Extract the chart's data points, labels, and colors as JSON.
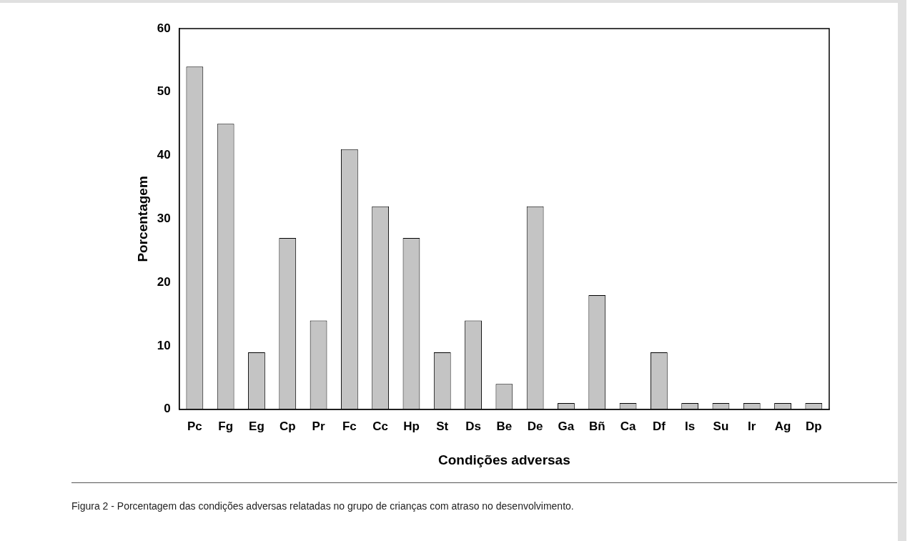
{
  "chart_data": {
    "type": "bar",
    "xlabel": "Condições adversas",
    "ylabel": "Porcentagem",
    "categories": [
      "Pc",
      "Fg",
      "Eg",
      "Cp",
      "Pr",
      "Fc",
      "Cc",
      "Hp",
      "St",
      "Ds",
      "Be",
      "De",
      "Ga",
      "Bñ",
      "Ca",
      "Df",
      "Is",
      "Su",
      "Ir",
      "Ag",
      "Dp"
    ],
    "values": [
      54,
      45,
      9,
      27,
      14,
      41,
      32,
      27,
      9,
      14,
      4,
      32,
      1,
      18,
      1,
      9,
      1,
      1,
      1,
      1,
      1
    ],
    "color": "#c4c4c4",
    "ylim": [
      0,
      60
    ],
    "yticks": [
      0,
      10,
      20,
      30,
      40,
      50,
      60
    ],
    "grid": false,
    "legend": false,
    "annotations": [
      "Figura 2 - Porcentagem das condições adversas relatadas no grupo de crianças com atraso no desenvolvimento."
    ]
  }
}
